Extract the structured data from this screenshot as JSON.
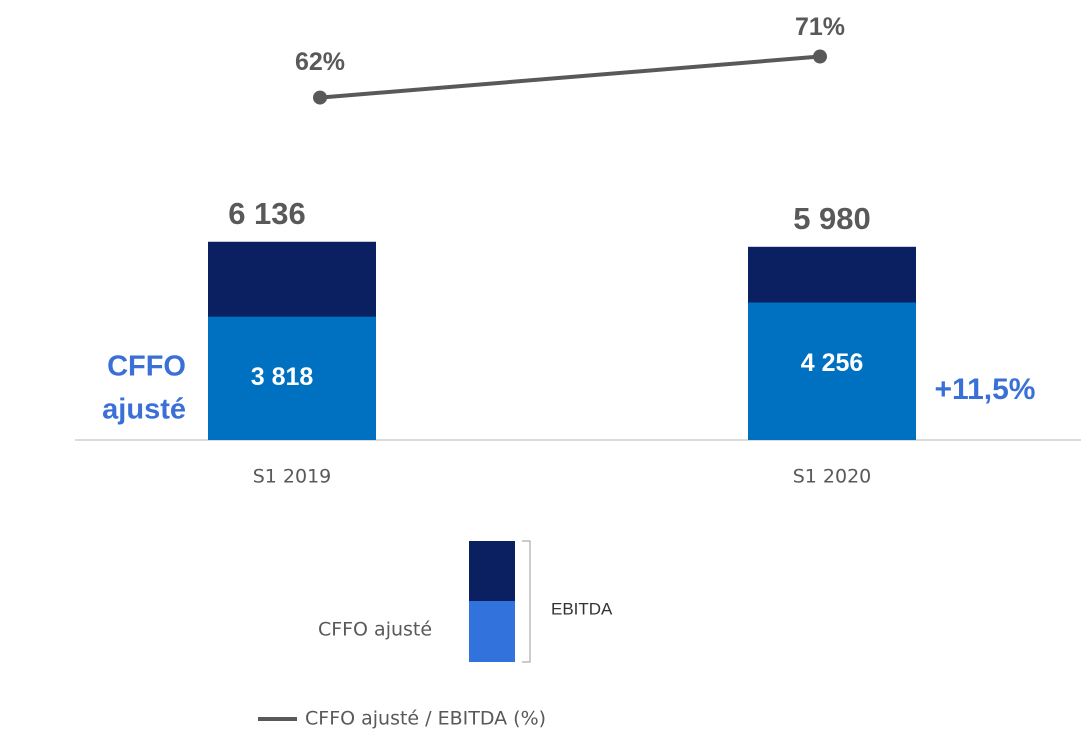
{
  "chart_data": {
    "type": "bar",
    "categories": [
      "S1 2019",
      "S1 2020"
    ],
    "series": [
      {
        "name": "EBITDA",
        "color": "#0b2060",
        "values": [
          6136,
          5980
        ],
        "value_labels": [
          "6 136",
          "5 980"
        ]
      },
      {
        "name": "CFFO ajusté",
        "color": "#0070c0",
        "values": [
          3818,
          4256
        ],
        "value_labels": [
          "3 818",
          "4 256"
        ]
      },
      {
        "name": "CFFO ajusté / EBITDA (%)",
        "type": "line",
        "axis": "y2",
        "color": "#595959",
        "values": [
          62,
          71
        ],
        "value_labels": [
          "62%",
          "71%"
        ]
      }
    ],
    "ylim": [
      0,
      13000
    ],
    "y2lim": [
      -13,
      79
    ],
    "annotations": {
      "left_label": [
        "CFFO",
        "ajusté"
      ],
      "growth": "+11,5%"
    }
  }
}
